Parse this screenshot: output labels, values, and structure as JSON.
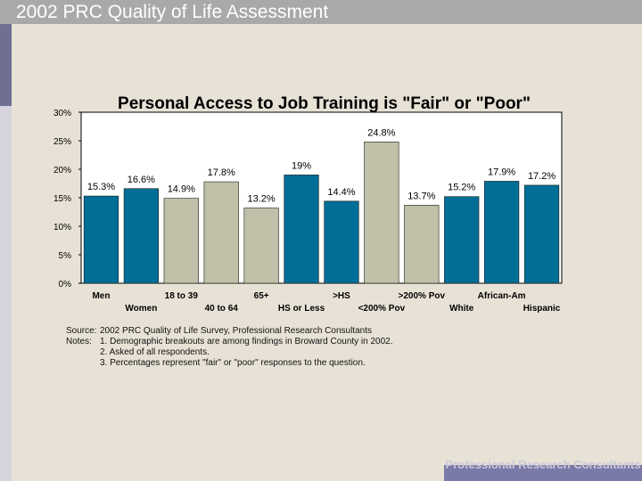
{
  "header": {
    "title": "2002 PRC Quality of Life Assessment"
  },
  "chart_data": {
    "type": "bar",
    "title": "Personal Access to Job Training is \"Fair\" or \"Poor\"",
    "categories": [
      "Men",
      "Women",
      "18 to 39",
      "40 to 64",
      "65+",
      "HS or Less",
      ">HS",
      "<200% Pov",
      ">200% Pov",
      "White",
      "African-Am",
      "Hispanic"
    ],
    "values": [
      15.3,
      16.6,
      14.9,
      17.8,
      13.2,
      19,
      14.4,
      24.8,
      13.7,
      15.2,
      17.9,
      17.2
    ],
    "value_labels": [
      "15.3%",
      "16.6%",
      "14.9%",
      "17.8%",
      "13.2%",
      "19%",
      "14.4%",
      "24.8%",
      "13.7%",
      "15.2%",
      "17.9%",
      "17.2%"
    ],
    "bar_colors": [
      "#006e96",
      "#006e96",
      "#c0c0a8",
      "#c0c0a8",
      "#c0c0a8",
      "#006e96",
      "#006e96",
      "#c0c0a8",
      "#c0c0a8",
      "#006e96",
      "#006e96",
      "#006e96"
    ],
    "ylim": [
      0,
      30
    ],
    "yticks": [
      "0%",
      "5%",
      "10%",
      "15%",
      "20%",
      "25%",
      "30%"
    ],
    "xlabel": "",
    "ylabel": "",
    "grid": false,
    "legend": "none"
  },
  "source": {
    "source_label": "Source:",
    "source_text": "2002 PRC Quality of Life Survey, Professional Research Consultants",
    "notes_label": "Notes:",
    "notes": [
      "1. Demographic breakouts are among findings in Broward County in 2002.",
      "2. Asked of all respondents.",
      "3.  Percentages represent \"fair\" or \"poor\" responses to the question."
    ]
  },
  "footer": {
    "text": "Professional Research Consultants"
  },
  "colors": {
    "primary_bar": "#006e96",
    "secondary_bar": "#c0c0a8",
    "background": "#e8e2d6",
    "header": "#a9a9a9"
  }
}
